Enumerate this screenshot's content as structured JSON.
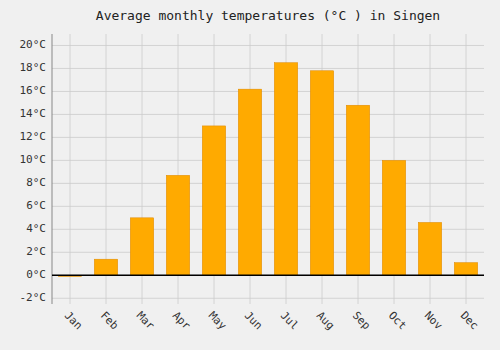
{
  "chart_data": {
    "type": "bar",
    "title": "Average monthly temperatures (°C ) in Singen",
    "categories": [
      "Jan",
      "Feb",
      "Mar",
      "Apr",
      "May",
      "Jun",
      "Jul",
      "Aug",
      "Sep",
      "Oct",
      "Nov",
      "Dec"
    ],
    "values": [
      -0.1,
      1.4,
      5.0,
      8.7,
      13.0,
      16.2,
      18.5,
      17.8,
      14.8,
      10.0,
      4.6,
      1.1
    ],
    "color": "#FFAA00",
    "ylim": [
      -2.5,
      21
    ],
    "yticks": [
      {
        "value": -2,
        "label": "-2°C"
      },
      {
        "value": 0,
        "label": "0°C"
      },
      {
        "value": 2,
        "label": "2°C"
      },
      {
        "value": 4,
        "label": "4°C"
      },
      {
        "value": 6,
        "label": "6°C"
      },
      {
        "value": 8,
        "label": "8°C"
      },
      {
        "value": 10,
        "label": "10°C"
      },
      {
        "value": 12,
        "label": "12°C"
      },
      {
        "value": 14,
        "label": "14°C"
      },
      {
        "value": 16,
        "label": "16°C"
      },
      {
        "value": 18,
        "label": "18°C"
      },
      {
        "value": 20,
        "label": "20°C"
      }
    ],
    "grid": true
  }
}
